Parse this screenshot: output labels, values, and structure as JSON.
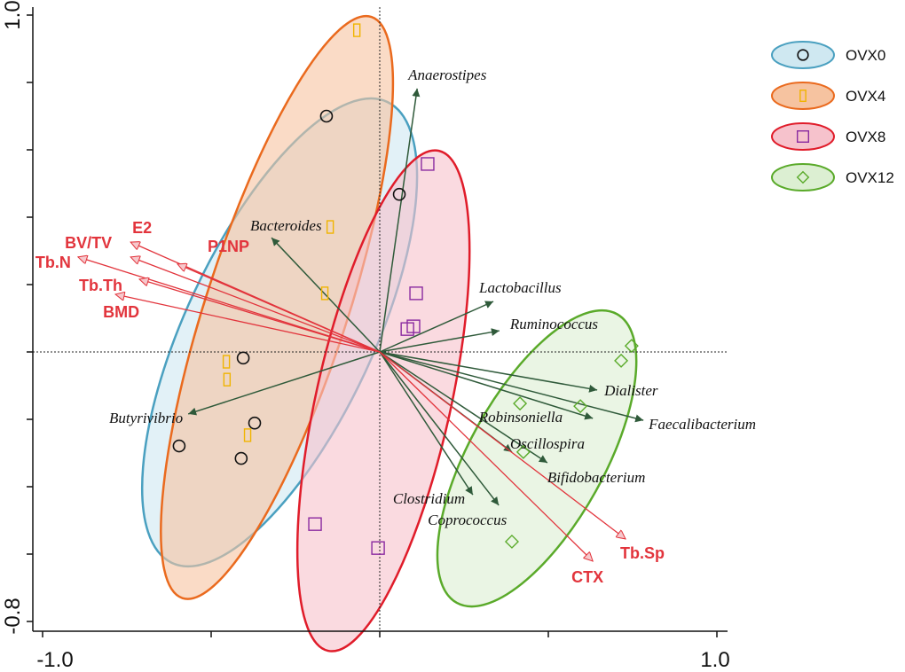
{
  "chart_data": {
    "type": "scatter",
    "subtype": "RDA biplot",
    "title": "",
    "xlabel": "",
    "ylabel": "",
    "xlim": [
      -1.0,
      1.0
    ],
    "ylim": [
      -0.8,
      1.0
    ],
    "x_tick_labels": [
      "-1.0",
      "1.0"
    ],
    "y_tick_labels": [
      "1.0",
      "-0.8"
    ],
    "x_ticks": [
      -1.0,
      -0.5,
      0,
      0.5,
      1.0
    ],
    "y_ticks": [
      1.0,
      0.8,
      0.6,
      0.4,
      0.2,
      0,
      -0.2,
      -0.4,
      -0.6,
      -0.8
    ],
    "legend_position": "right",
    "groups": [
      {
        "name": "OVX0",
        "marker": "circle",
        "stroke": "#4aa0c0",
        "fill": "#cfe8f1",
        "marker_color": "#111111",
        "ellipse": {
          "cx": -0.297,
          "cy": 0.058,
          "a": 0.755,
          "b": 0.28,
          "angle": 65
        },
        "points": [
          [
            -0.158,
            0.7
          ],
          [
            0.058,
            0.468
          ],
          [
            -0.405,
            -0.018
          ],
          [
            -0.371,
            -0.211
          ],
          [
            -0.595,
            -0.279
          ],
          [
            -0.411,
            -0.316
          ]
        ]
      },
      {
        "name": "OVX4",
        "marker": "rect",
        "stroke": "#ea6a1e",
        "fill": "#f6c3a0",
        "marker_color": "#f0b400",
        "ellipse": {
          "cx": -0.305,
          "cy": 0.132,
          "a": 0.907,
          "b": 0.21,
          "angle": 72
        },
        "points": [
          [
            -0.068,
            0.955
          ],
          [
            -0.147,
            0.371
          ],
          [
            -0.163,
            0.174
          ],
          [
            -0.455,
            -0.029
          ],
          [
            -0.453,
            -0.082
          ],
          [
            -0.392,
            -0.247
          ]
        ]
      },
      {
        "name": "OVX8",
        "marker": "square",
        "stroke": "#e01c2a",
        "fill": "#f6c2cc",
        "marker_color": "#8a2aa0",
        "ellipse": {
          "cx": 0.011,
          "cy": -0.145,
          "a": 0.76,
          "b": 0.2,
          "angle": 77.5
        },
        "points": [
          [
            0.142,
            0.558
          ],
          [
            0.108,
            0.174
          ],
          [
            0.1,
            0.076
          ],
          [
            0.082,
            0.068
          ],
          [
            -0.192,
            -0.511
          ],
          [
            -0.005,
            -0.582
          ]
        ]
      },
      {
        "name": "OVX12",
        "marker": "diamond",
        "stroke": "#5aaa2a",
        "fill": "#dcefd2",
        "marker_color": "#5aaa2a",
        "ellipse": {
          "cx": 0.466,
          "cy": -0.316,
          "a": 0.49,
          "b": 0.2,
          "angle": 61
        },
        "points": [
          [
            0.747,
            0.018
          ],
          [
            0.716,
            -0.026
          ],
          [
            0.416,
            -0.153
          ],
          [
            0.595,
            -0.161
          ],
          [
            0.426,
            -0.297
          ],
          [
            0.392,
            -0.563
          ]
        ]
      }
    ],
    "species_arrows": [
      {
        "name": "Anaerostipes",
        "x": 0.111,
        "y": 0.782
      },
      {
        "name": "Bacteroides",
        "x": -0.321,
        "y": 0.339
      },
      {
        "name": "Lactobacillus",
        "x": 0.337,
        "y": 0.15
      },
      {
        "name": "Ruminococcus",
        "x": 0.355,
        "y": 0.063
      },
      {
        "name": "Dialister",
        "x": 0.645,
        "y": -0.113
      },
      {
        "name": "Faecalibacterium",
        "x": 0.782,
        "y": -0.203
      },
      {
        "name": "Robinsoniella",
        "x": 0.632,
        "y": -0.197
      },
      {
        "name": "Oscillospira",
        "x": 0.392,
        "y": -0.297
      },
      {
        "name": "Bifidobacterium",
        "x": 0.497,
        "y": -0.329
      },
      {
        "name": "Clostridium",
        "x": 0.276,
        "y": -0.424
      },
      {
        "name": "Coprococcus",
        "x": 0.353,
        "y": -0.455
      },
      {
        "name": "Butyrivibrio",
        "x": -0.568,
        "y": -0.184
      }
    ],
    "env_arrows": [
      {
        "name": "BV/TV",
        "x": -0.739,
        "y": 0.282
      },
      {
        "name": "E2",
        "x": -0.739,
        "y": 0.326
      },
      {
        "name": "Tb.N",
        "x": -0.895,
        "y": 0.282
      },
      {
        "name": "Tb.Th",
        "x": -0.713,
        "y": 0.216
      },
      {
        "name": "BMD",
        "x": -0.784,
        "y": 0.171
      },
      {
        "name": "P1NP",
        "x": -0.6,
        "y": 0.261
      },
      {
        "name": "Tb.Sp",
        "x": 0.729,
        "y": -0.555
      },
      {
        "name": "CTX",
        "x": 0.632,
        "y": -0.621
      }
    ],
    "colors": {
      "species_arrow": "#2f5a3a",
      "env_arrow": "#e2343c"
    }
  }
}
